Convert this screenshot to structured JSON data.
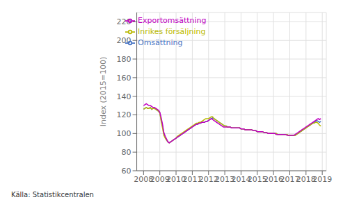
{
  "chart_data": {
    "type": "line",
    "ylabel": "Index (2015=100)",
    "annotations": [
      "Källa: Statistikcentralen"
    ],
    "xlim": [
      2007.58,
      2019.25
    ],
    "xticks": [
      2008,
      2009,
      2010,
      2011,
      2012,
      2013,
      2014,
      2015,
      2016,
      2017,
      2018,
      2019
    ],
    "ylim": [
      60,
      230
    ],
    "yticks": [
      60,
      80,
      100,
      120,
      140,
      160,
      180,
      200,
      220
    ],
    "grid": true,
    "legend": "upper left",
    "x": [
      2008,
      2008.083333,
      2008.166667,
      2008.25,
      2008.333333,
      2008.416667,
      2008.5,
      2008.583333,
      2008.666667,
      2008.75,
      2008.833333,
      2008.916667,
      2009,
      2009.083333,
      2009.166667,
      2009.25,
      2009.333333,
      2009.416667,
      2009.5,
      2009.583333,
      2009.666667,
      2009.75,
      2009.833333,
      2009.916667,
      2010,
      2010.083333,
      2010.166667,
      2010.25,
      2010.333333,
      2010.416667,
      2010.5,
      2010.583333,
      2010.666667,
      2010.75,
      2010.833333,
      2010.916667,
      2011,
      2011.083333,
      2011.166667,
      2011.25,
      2011.333333,
      2011.416667,
      2011.5,
      2011.583333,
      2011.666667,
      2011.75,
      2011.833333,
      2011.916667,
      2012,
      2012.083333,
      2012.166667,
      2012.25,
      2012.333333,
      2012.416667,
      2012.5,
      2012.583333,
      2012.666667,
      2012.75,
      2012.833333,
      2012.916667,
      2013,
      2013.083333,
      2013.166667,
      2013.25,
      2013.333333,
      2013.416667,
      2013.5,
      2013.583333,
      2013.666667,
      2013.75,
      2013.833333,
      2013.916667,
      2014,
      2014.083333,
      2014.166667,
      2014.25,
      2014.333333,
      2014.416667,
      2014.5,
      2014.583333,
      2014.666667,
      2014.75,
      2014.833333,
      2014.916667,
      2015,
      2015.083333,
      2015.166667,
      2015.25,
      2015.333333,
      2015.416667,
      2015.5,
      2015.583333,
      2015.666667,
      2015.75,
      2015.833333,
      2015.916667,
      2016,
      2016.083333,
      2016.166667,
      2016.25,
      2016.333333,
      2016.416667,
      2016.5,
      2016.583333,
      2016.666667,
      2016.75,
      2016.833333,
      2016.916667,
      2017,
      2017.083333,
      2017.166667,
      2017.25,
      2017.333333,
      2017.416667,
      2017.5,
      2017.583333,
      2017.666667,
      2017.75,
      2017.833333,
      2017.916667,
      2018,
      2018.083333,
      2018.166667,
      2018.25,
      2018.333333,
      2018.416667,
      2018.5,
      2018.583333,
      2018.666667,
      2018.75,
      2018.833333,
      2018.916667
    ],
    "series": [
      {
        "name": "Omsättning",
        "color": "#4472c4",
        "values": [
          126,
          127,
          128,
          127,
          127,
          128,
          126,
          127,
          127,
          126,
          125,
          124,
          122,
          115,
          108,
          100,
          96,
          93,
          91,
          90,
          91,
          92,
          93,
          94,
          95,
          96,
          97,
          98,
          99,
          100,
          101,
          102,
          103,
          104,
          105,
          106,
          107,
          108,
          109,
          110,
          110,
          111,
          111,
          112,
          112,
          112,
          113,
          113,
          114,
          115,
          116,
          117,
          116,
          115,
          114,
          113,
          112,
          111,
          110,
          109,
          108,
          108,
          107,
          107,
          107,
          106,
          106,
          106,
          106,
          106,
          106,
          106,
          105,
          105,
          105,
          104,
          104,
          104,
          104,
          104,
          104,
          103,
          103,
          103,
          102,
          102,
          102,
          102,
          102,
          101,
          101,
          101,
          100,
          100,
          100,
          100,
          100,
          100,
          100,
          99,
          99,
          99,
          99,
          99,
          99,
          99,
          99,
          98,
          98,
          98,
          98,
          98,
          98,
          99,
          100,
          101,
          102,
          103,
          104,
          105,
          106,
          107,
          108,
          109,
          110,
          111,
          112,
          113,
          114,
          113,
          112,
          113
        ]
      },
      {
        "name": "Inrikes försäljning",
        "color": "#b8b800",
        "values": [
          126,
          127,
          128,
          127,
          127,
          128,
          126,
          127,
          127,
          126,
          125,
          124,
          122,
          113,
          106,
          98,
          95,
          93,
          91,
          90,
          91,
          92,
          93,
          94,
          95,
          97,
          98,
          99,
          100,
          101,
          102,
          103,
          104,
          105,
          106,
          107,
          108,
          109,
          110,
          111,
          111,
          112,
          112,
          113,
          114,
          115,
          116,
          116,
          116,
          117,
          118,
          118,
          116,
          115,
          114,
          113,
          112,
          111,
          110,
          109,
          108,
          108,
          107,
          107,
          107,
          106,
          106,
          106,
          106,
          106,
          106,
          106,
          105,
          105,
          105,
          104,
          104,
          104,
          104,
          104,
          104,
          103,
          103,
          103,
          102,
          102,
          102,
          102,
          102,
          101,
          101,
          101,
          100,
          100,
          100,
          100,
          100,
          100,
          100,
          99,
          99,
          99,
          99,
          99,
          99,
          99,
          99,
          98,
          98,
          98,
          98,
          98,
          98,
          99,
          100,
          101,
          102,
          103,
          104,
          105,
          106,
          107,
          108,
          109,
          110,
          111,
          111,
          112,
          112,
          111,
          109,
          108
        ]
      },
      {
        "name": "Exportomsättning",
        "color": "#c000c0",
        "values": [
          130,
          131,
          132,
          131,
          130,
          130,
          129,
          128,
          128,
          127,
          126,
          125,
          123,
          117,
          110,
          101,
          97,
          94,
          91,
          90,
          91,
          92,
          93,
          94,
          95,
          96,
          97,
          98,
          99,
          100,
          101,
          102,
          103,
          104,
          105,
          106,
          107,
          108,
          109,
          110,
          110,
          111,
          111,
          112,
          112,
          112,
          113,
          113,
          114,
          115,
          116,
          115,
          114,
          113,
          112,
          111,
          110,
          109,
          108,
          107,
          107,
          107,
          107,
          107,
          107,
          106,
          106,
          106,
          106,
          106,
          106,
          106,
          105,
          105,
          105,
          104,
          104,
          104,
          104,
          104,
          104,
          103,
          103,
          103,
          102,
          102,
          102,
          102,
          102,
          101,
          101,
          101,
          100,
          100,
          100,
          100,
          100,
          100,
          99,
          99,
          99,
          99,
          99,
          99,
          99,
          99,
          98,
          98,
          98,
          98,
          98,
          98,
          99,
          100,
          101,
          102,
          103,
          104,
          105,
          106,
          107,
          108,
          109,
          110,
          111,
          112,
          113,
          114,
          115,
          116,
          115,
          116
        ]
      }
    ]
  }
}
